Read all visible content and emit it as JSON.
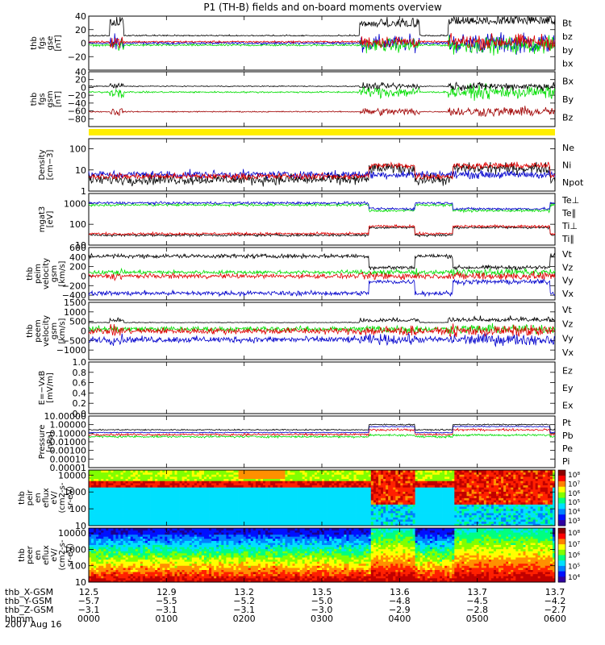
{
  "chart_data": {
    "type": "line",
    "title": "P1 (TH-B) fields and on-board moments overview",
    "date": "2007 Aug 16",
    "colors": {
      "black": "#000000",
      "red": "#e00000",
      "green": "#00dd00",
      "blue": "#0000cc",
      "darkred": "#a00000",
      "yellow": "#ffee00"
    },
    "panels": [
      {
        "id": "fgs",
        "ylabel": [
          "thb",
          "fgs",
          "gse",
          "[nT]"
        ],
        "ylim": [
          -40,
          40
        ],
        "ticks": [
          -20,
          0,
          20,
          40
        ],
        "tick_labels": [
          "−20",
          "0",
          "20",
          "40"
        ],
        "legend": [
          {
            "label": "Bt",
            "color": "#000000"
          },
          {
            "label": "bz",
            "color": "#e00000"
          },
          {
            "label": "by",
            "color": "#00dd00"
          },
          {
            "label": "bx",
            "color": "#0000cc"
          }
        ]
      },
      {
        "id": "fgs_gsm",
        "ylabel": [
          "thb",
          "fgs",
          "gsm",
          "[nT]"
        ],
        "ylim": [
          -100,
          40
        ],
        "ticks": [
          -80,
          -60,
          -40,
          -20,
          0,
          20,
          40
        ],
        "tick_labels": [
          "−80",
          "−60",
          "−40",
          "−20",
          "0",
          "20",
          "40"
        ],
        "legend": [
          {
            "label": "Bx",
            "color": "#000000"
          },
          {
            "label": "By",
            "color": "#00dd00"
          },
          {
            "label": "Bz",
            "color": "#a00000"
          }
        ]
      },
      {
        "id": "density",
        "ylabel": [
          "Density",
          "[cm−3]"
        ],
        "yscale": "log",
        "ylim": [
          1,
          300
        ],
        "ticks": [
          1,
          10,
          100
        ],
        "tick_labels": [
          "1",
          "10",
          "100"
        ],
        "legend": [
          {
            "label": "Ne",
            "color": "#e00000"
          },
          {
            "label": "Ni",
            "color": "#000000"
          },
          {
            "label": "Npot",
            "color": "#0000cc"
          }
        ]
      },
      {
        "id": "temp",
        "ylabel": [
          "mgat3",
          "[eV]"
        ],
        "yscale": "log",
        "ylim": [
          10,
          3000
        ],
        "ticks": [
          10,
          100,
          1000
        ],
        "tick_labels": [
          "10",
          "100",
          "1000"
        ],
        "legend": [
          {
            "label": "Te⊥",
            "color": "#e00000"
          },
          {
            "label": "Te∥",
            "color": "#000000"
          },
          {
            "label": "Ti⊥",
            "color": "#00dd00"
          },
          {
            "label": "Ti∥",
            "color": "#00dd00"
          }
        ]
      },
      {
        "id": "peim_vel",
        "ylabel": [
          "thb",
          "peim",
          "velocity",
          "gsm",
          "[km/s]"
        ],
        "ylim": [
          -500,
          600
        ],
        "ticks": [
          -400,
          -200,
          0,
          200,
          400,
          600
        ],
        "tick_labels": [
          "−400",
          "−200",
          "0",
          "200",
          "400",
          "600"
        ],
        "legend": [
          {
            "label": "Vt",
            "color": "#000000"
          },
          {
            "label": "Vz",
            "color": "#e00000"
          },
          {
            "label": "Vy",
            "color": "#00dd00"
          },
          {
            "label": "Vx",
            "color": "#0000cc"
          }
        ]
      },
      {
        "id": "peem_vel",
        "ylabel": [
          "thb",
          "peem",
          "velocity",
          "gsm",
          "[km/s]"
        ],
        "ylim": [
          -1500,
          1500
        ],
        "ticks": [
          -1000,
          -500,
          0,
          500,
          1000,
          1500
        ],
        "tick_labels": [
          "−1000",
          "−500",
          "0",
          "500",
          "1000",
          "1500"
        ],
        "legend": [
          {
            "label": "Vt",
            "color": "#000000"
          },
          {
            "label": "Vz",
            "color": "#e00000"
          },
          {
            "label": "Vy",
            "color": "#00dd00"
          },
          {
            "label": "Vx",
            "color": "#0000cc"
          }
        ]
      },
      {
        "id": "efield",
        "ylabel": [
          "E=−VxB",
          "[mV/m]"
        ],
        "ylim": [
          0,
          1
        ],
        "ticks": [
          0,
          0.2,
          0.4,
          0.6,
          0.8,
          1.0
        ],
        "tick_labels": [
          "0.0",
          "0.2",
          "0.4",
          "0.6",
          "0.8",
          "1.0"
        ],
        "legend": [
          {
            "label": "Ez",
            "color": "#e00000"
          },
          {
            "label": "Ey",
            "color": "#00dd00"
          },
          {
            "label": "Ex",
            "color": "#0000cc"
          }
        ]
      },
      {
        "id": "pressure",
        "ylabel": [
          "Pressure",
          "[nPa]"
        ],
        "yscale": "log",
        "ylim": [
          1e-05,
          10
        ],
        "ticks": [
          1e-05,
          0.0001,
          0.001,
          0.01,
          0.1,
          1,
          10
        ],
        "tick_labels": [
          "0.00001",
          "0.00010",
          "0.00100",
          "0.01000",
          "0.10000",
          "1.00000",
          "10.00000"
        ],
        "legend": [
          {
            "label": "Pt",
            "color": "#000000"
          },
          {
            "label": "Pb",
            "color": "#e00000"
          },
          {
            "label": "Pe",
            "color": "#00dd00"
          },
          {
            "label": "Pi",
            "color": "#0000cc"
          }
        ]
      },
      {
        "id": "peir_spec",
        "ylabel": [
          "thb",
          "peir",
          "en",
          "eflux",
          "eV/",
          "(cm2-s-",
          "sr-eV)"
        ],
        "yscale": "log",
        "ylim": [
          10,
          20000
        ],
        "ticks": [
          10,
          100,
          1000,
          10000
        ],
        "tick_labels": [
          "10",
          "100",
          "1000",
          "10000"
        ],
        "colorbar": {
          "labels": [
            "10³",
            "10⁴",
            "10⁵",
            "10⁶",
            "10⁷",
            "10⁸"
          ]
        }
      },
      {
        "id": "peer_spec",
        "ylabel": [
          "thb",
          "peer",
          "en",
          "eflux",
          "eV/",
          "(cm2-s-",
          "sr-eV)"
        ],
        "yscale": "log",
        "ylim": [
          10,
          20000
        ],
        "ticks": [
          10,
          100,
          1000,
          10000
        ],
        "tick_labels": [
          "10",
          "100",
          "1000",
          "10000"
        ],
        "colorbar": {
          "labels": [
            "10⁴",
            "10⁵",
            "10⁶",
            "10⁷",
            "10⁸"
          ]
        }
      }
    ],
    "x_axis": {
      "hhmm": [
        "0000",
        "0100",
        "0200",
        "0300",
        "0400",
        "0500",
        "0600"
      ],
      "rows": [
        {
          "label": "thb_X-GSM",
          "values": [
            "12.5",
            "12.9",
            "13.2",
            "13.5",
            "13.6",
            "13.7",
            "13.7"
          ]
        },
        {
          "label": "thb_Y-GSM",
          "values": [
            "−5.7",
            "−5.5",
            "−5.2",
            "−5.0",
            "−4.8",
            "−4.5",
            "−4.2"
          ]
        },
        {
          "label": "thb_Z-GSM",
          "values": [
            "−3.1",
            "−3.1",
            "−3.1",
            "−3.0",
            "−2.9",
            "−2.8",
            "−2.7"
          ]
        },
        {
          "label": "hhmm",
          "values": [
            "0000",
            "0100",
            "0200",
            "0300",
            "0400",
            "0500",
            "0600"
          ]
        }
      ]
    }
  }
}
